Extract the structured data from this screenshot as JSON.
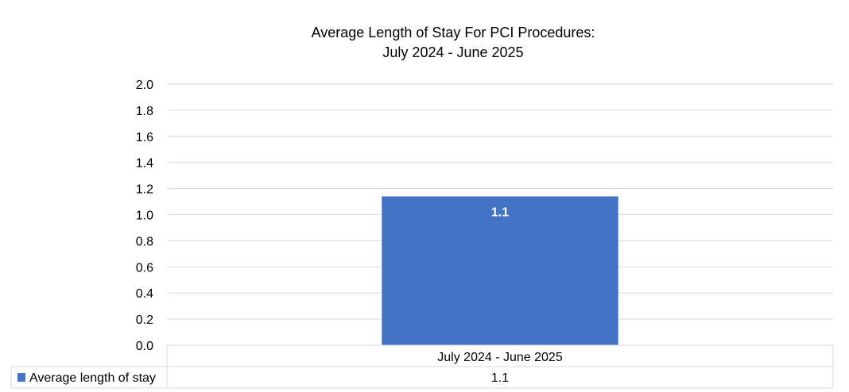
{
  "chart_data": {
    "type": "bar",
    "title": [
      "Average Length of Stay For PCI Procedures:",
      "July 2024 - June 2025"
    ],
    "categories": [
      "July 2024 - June 2025"
    ],
    "series": [
      {
        "name": "Average length of stay",
        "values": [
          1.14
        ],
        "data_labels": [
          "1.1"
        ],
        "table_values": [
          "1.1"
        ],
        "color": "#4472C4"
      }
    ],
    "ylim": [
      0,
      2.0
    ],
    "yticks": [
      "0.0",
      "0.2",
      "0.4",
      "0.6",
      "0.8",
      "1.0",
      "1.2",
      "1.4",
      "1.6",
      "1.8",
      "2.0"
    ],
    "grid": true,
    "xlabel": "",
    "ylabel": "",
    "legend": "data-table-bottom",
    "colors": {
      "grid": "#D9D9D9",
      "label": "#FFFFFF"
    }
  }
}
